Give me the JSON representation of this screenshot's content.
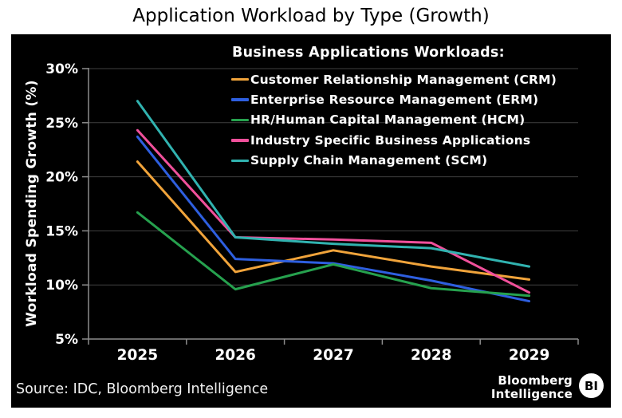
{
  "page": {
    "title": "Application Workload by Type (Growth)"
  },
  "chart_data": {
    "type": "line",
    "title": "Application Workload by Type (Growth)",
    "xlabel": "",
    "ylabel": "Workload Spending Growth (%)",
    "x_labels": [
      "2025",
      "2026",
      "2027",
      "2028",
      "2029"
    ],
    "y_ticks": [
      30,
      25,
      20,
      15,
      10,
      5
    ],
    "y_tick_labels": [
      "30%",
      "25%",
      "20%",
      "15%",
      "10%",
      "5%"
    ],
    "ylim": [
      5,
      30
    ],
    "grid": true,
    "legend_title": "Business Applications Workloads:",
    "legend_position": "top-right-inside",
    "series": [
      {
        "name": "Customer Relationship Management (CRM)",
        "color": "#F1A43B",
        "values": [
          21.4,
          11.2,
          13.2,
          11.7,
          10.5
        ]
      },
      {
        "name": "Enterprise Resource Management (ERM)",
        "color": "#2E5FE0",
        "values": [
          23.7,
          12.4,
          12.0,
          10.4,
          8.5
        ]
      },
      {
        "name": "HR/Human Capital Management (HCM)",
        "color": "#26A14E",
        "values": [
          16.7,
          9.6,
          11.9,
          9.7,
          9.0
        ]
      },
      {
        "name": "Industry Specific Business Applications",
        "color": "#F0509B",
        "values": [
          24.3,
          14.4,
          14.2,
          13.9,
          9.3
        ]
      },
      {
        "name": "Supply Chain Management (SCM)",
        "color": "#31B3B0",
        "values": [
          27.0,
          14.4,
          13.8,
          13.4,
          11.7
        ]
      }
    ]
  },
  "footer": {
    "source": "Source: IDC, Bloomberg Intelligence"
  },
  "brand": {
    "line1": "Bloomberg",
    "line2": "Intelligence",
    "badge": "BI"
  },
  "colors": {
    "panel_bg": "#000000",
    "grid": "#414141",
    "axis": "#8C8C8C",
    "text": "#FFFFFF",
    "title_text": "#000000"
  }
}
